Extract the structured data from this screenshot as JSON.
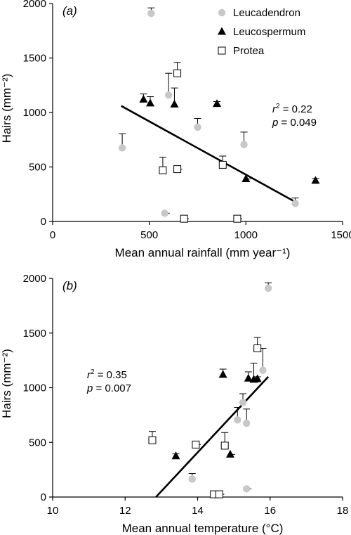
{
  "colors": {
    "leucadendron": "#c8c8c8",
    "leucospermum": "#000000",
    "protea_fill": "#ffffff",
    "axis": "#000000"
  },
  "legend": {
    "leucadendron": "Leucadendron",
    "leucospermum": "Leucospermum",
    "protea": "Protea"
  },
  "chart_data": [
    {
      "type": "scatter",
      "panel_label": "(a)",
      "xlabel": "Mean annual rainfall (mm year⁻¹)",
      "ylabel": "Hairs (mm⁻²)",
      "xlim": [
        0,
        1500
      ],
      "ylim": [
        0,
        2000
      ],
      "x_ticks": [
        "0",
        "500",
        "1000",
        "1500"
      ],
      "y_ticks": [
        "0",
        "500",
        "1000",
        "1500",
        "2000"
      ],
      "stats": {
        "r2_label": "r",
        "r2_sup": "2",
        "r2_value": " = 0.22",
        "p_label": "p",
        "p_value": " = 0.049"
      },
      "regression": {
        "x": [
          355,
          1260
        ],
        "y": [
          1060,
          175
        ]
      },
      "series": [
        {
          "name": "Leucadendron",
          "marker": "circle",
          "points": [
            {
              "x": 510,
              "y": 1910,
              "err": 50
            },
            {
              "x": 360,
              "y": 675,
              "err": 130
            },
            {
              "x": 600,
              "y": 1160,
              "err": 200
            },
            {
              "x": 750,
              "y": 865,
              "err": 80
            },
            {
              "x": 990,
              "y": 705,
              "err": 115
            },
            {
              "x": 580,
              "y": 75,
              "err": 0
            },
            {
              "x": 1255,
              "y": 165,
              "err": 50
            }
          ]
        },
        {
          "name": "Leucospermum",
          "marker": "triangle",
          "points": [
            {
              "x": 470,
              "y": 1120,
              "err": 50
            },
            {
              "x": 505,
              "y": 1085,
              "err": 60
            },
            {
              "x": 630,
              "y": 1075,
              "err": 150
            },
            {
              "x": 850,
              "y": 1080,
              "err": 20
            },
            {
              "x": 1000,
              "y": 390,
              "err": 0
            },
            {
              "x": 1360,
              "y": 375,
              "err": 20
            }
          ]
        },
        {
          "name": "Protea",
          "marker": "square",
          "points": [
            {
              "x": 645,
              "y": 1360,
              "err": 100
            },
            {
              "x": 570,
              "y": 470,
              "err": 120
            },
            {
              "x": 645,
              "y": 480,
              "err": 0
            },
            {
              "x": 680,
              "y": 25,
              "err": 0
            },
            {
              "x": 880,
              "y": 520,
              "err": 80
            },
            {
              "x": 955,
              "y": 25,
              "err": 0
            }
          ]
        }
      ]
    },
    {
      "type": "scatter",
      "panel_label": "(b)",
      "xlabel": "Mean annual temperature (°C)",
      "ylabel": "Hairs (mm⁻²)",
      "xlim": [
        10,
        18
      ],
      "ylim": [
        0,
        2000
      ],
      "x_ticks": [
        "10",
        "12",
        "14",
        "16",
        "18"
      ],
      "y_ticks": [
        "0",
        "500",
        "1000",
        "1500",
        "2000"
      ],
      "stats": {
        "r2_label": "r",
        "r2_sup": "2",
        "r2_value": " = 0.35",
        "p_label": "p",
        "p_value": " = 0.007"
      },
      "regression": {
        "x": [
          12.85,
          15.95
        ],
        "y": [
          0,
          1100
        ]
      },
      "series": [
        {
          "name": "Leucadendron",
          "marker": "circle",
          "points": [
            {
              "x": 15.95,
              "y": 1910,
              "err": 50
            },
            {
              "x": 15.8,
              "y": 1160,
              "err": 200
            },
            {
              "x": 15.25,
              "y": 865,
              "err": 80
            },
            {
              "x": 15.1,
              "y": 705,
              "err": 115
            },
            {
              "x": 15.35,
              "y": 675,
              "err": 130
            },
            {
              "x": 13.85,
              "y": 165,
              "err": 50
            },
            {
              "x": 15.35,
              "y": 75,
              "err": 0
            }
          ]
        },
        {
          "name": "Leucospermum",
          "marker": "triangle",
          "points": [
            {
              "x": 14.7,
              "y": 1120,
              "err": 50
            },
            {
              "x": 15.4,
              "y": 1085,
              "err": 60
            },
            {
              "x": 15.55,
              "y": 1075,
              "err": 150
            },
            {
              "x": 15.65,
              "y": 1080,
              "err": 20
            },
            {
              "x": 13.4,
              "y": 375,
              "err": 20
            },
            {
              "x": 14.9,
              "y": 390,
              "err": 0
            }
          ]
        },
        {
          "name": "Protea",
          "marker": "square",
          "points": [
            {
              "x": 15.65,
              "y": 1360,
              "err": 100
            },
            {
              "x": 12.75,
              "y": 520,
              "err": 80
            },
            {
              "x": 13.95,
              "y": 480,
              "err": 0
            },
            {
              "x": 14.75,
              "y": 470,
              "err": 120
            },
            {
              "x": 14.45,
              "y": 25,
              "err": 0
            },
            {
              "x": 14.6,
              "y": 25,
              "err": 0
            }
          ]
        }
      ]
    }
  ]
}
